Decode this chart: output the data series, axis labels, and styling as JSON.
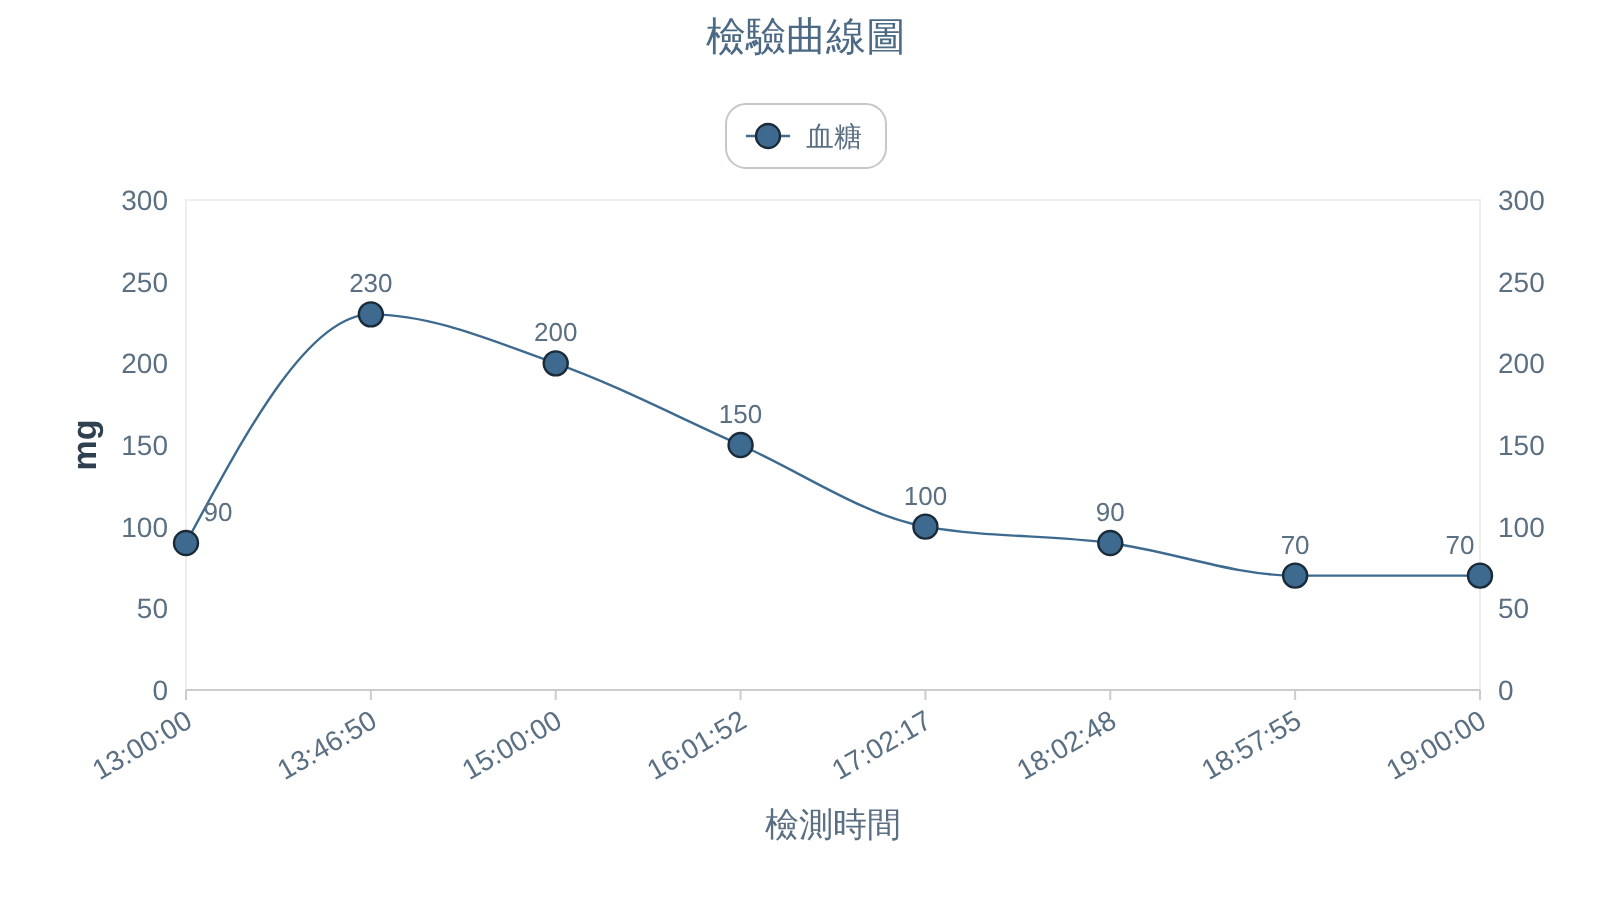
{
  "chart_data": {
    "type": "line",
    "title": "檢驗曲線圖",
    "xlabel": "檢測時間",
    "ylabel": "mg",
    "categories": [
      "13:00:00",
      "13:46:50",
      "15:00:00",
      "16:01:52",
      "17:02:17",
      "18:02:48",
      "18:57:55",
      "19:00:00"
    ],
    "series": [
      {
        "name": "血糖",
        "color": "#3d6a8e",
        "values": [
          90,
          230,
          200,
          150,
          100,
          90,
          70,
          70
        ]
      }
    ],
    "ylim": [
      0,
      300
    ],
    "yticks": [
      0,
      50,
      100,
      150,
      200,
      250,
      300
    ],
    "y2lim": [
      0,
      300
    ],
    "y2ticks": [
      0,
      50,
      100,
      150,
      200,
      250,
      300
    ],
    "data_labels": true,
    "legend": "top",
    "marker": "circle",
    "grid": false
  }
}
